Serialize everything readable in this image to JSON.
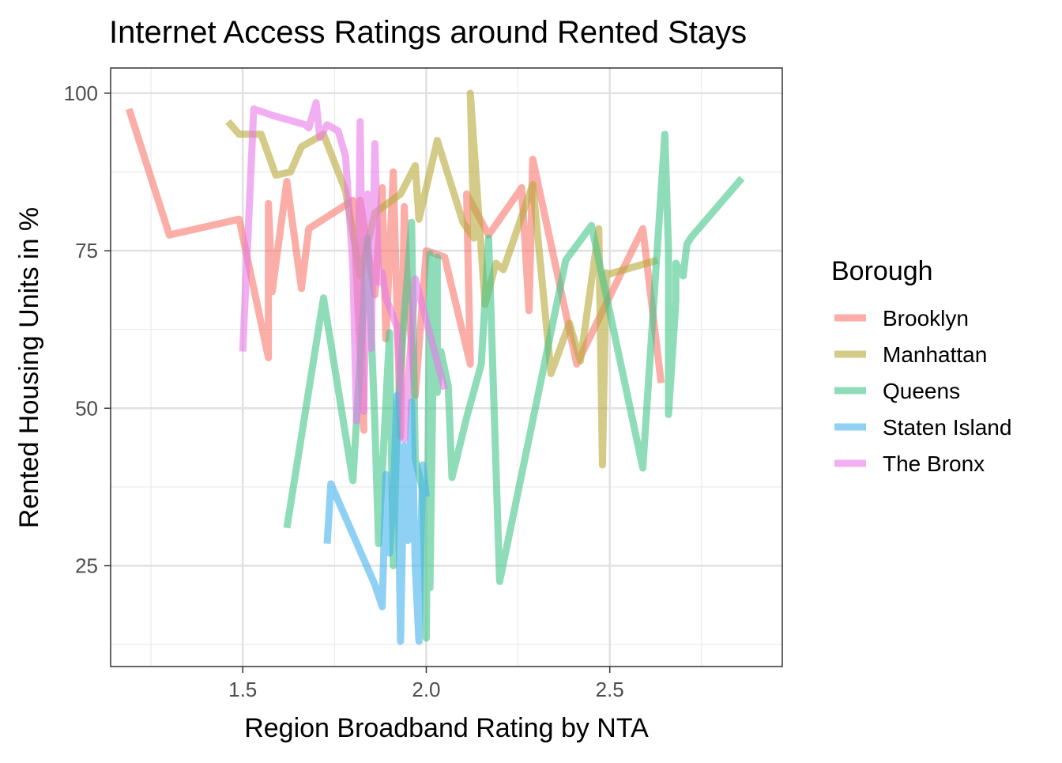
{
  "chart_data": {
    "type": "line",
    "title": "Internet Access Ratings around Rented Stays",
    "xlabel": "Region Broadband Rating by NTA",
    "ylabel": "Rented Housing Units in %",
    "xlim": [
      1.14,
      2.97
    ],
    "ylim": [
      9,
      104
    ],
    "x_ticks": [
      1.5,
      2.0,
      2.5
    ],
    "x_tick_labels": [
      "1.5",
      "2.0",
      "2.5"
    ],
    "x_minor": [
      1.25,
      1.75,
      2.25,
      2.75
    ],
    "y_ticks": [
      25,
      50,
      75,
      100
    ],
    "y_tick_labels": [
      "25",
      "50",
      "75",
      "100"
    ],
    "y_minor": [
      12.5,
      37.5,
      62.5,
      87.5
    ],
    "grid": true,
    "legend": {
      "title": "Borough",
      "position": "right"
    },
    "series": [
      {
        "name": "Brooklyn",
        "color": "#F8766D",
        "x": [
          1.19,
          1.3,
          1.49,
          1.57,
          1.57,
          1.58,
          1.62,
          1.66,
          1.68,
          1.8,
          1.83,
          1.82,
          1.86,
          1.88,
          1.89,
          1.91,
          1.93,
          1.94,
          1.95,
          1.97,
          2.0,
          2.05,
          2.12,
          2.11,
          2.17,
          2.26,
          2.28,
          2.29,
          2.41,
          2.59,
          2.64
        ],
        "y": [
          97.5,
          77.5,
          80,
          58,
          82.5,
          68.5,
          86,
          69,
          78.5,
          83,
          46.5,
          83,
          68,
          85,
          61,
          87.5,
          45.5,
          82,
          68,
          52,
          75,
          74,
          57,
          84,
          77.5,
          85,
          65.5,
          89.5,
          57,
          78.5,
          54
        ]
      },
      {
        "name": "Manhattan",
        "color": "#B7A839",
        "x": [
          1.46,
          1.49,
          1.55,
          1.59,
          1.63,
          1.66,
          1.72,
          1.78,
          1.82,
          1.86,
          1.93,
          1.97,
          1.98,
          2.03,
          2.1,
          2.13,
          2.12,
          2.16,
          2.19,
          2.21,
          2.29,
          2.34,
          2.39,
          2.42,
          2.47,
          2.48,
          2.49,
          2.48,
          2.63
        ],
        "y": [
          95.5,
          93.5,
          93.5,
          87,
          87.5,
          91.5,
          93.5,
          84.5,
          71,
          81,
          84,
          88.5,
          80,
          92.5,
          79.5,
          77,
          100,
          66.5,
          73,
          72,
          85.5,
          55.5,
          63.5,
          57.5,
          78.5,
          41,
          71.5,
          71,
          73.5
        ]
      },
      {
        "name": "Queens",
        "color": "#44C48A",
        "x": [
          1.62,
          1.72,
          1.8,
          1.84,
          1.86,
          1.87,
          1.9,
          1.91,
          1.92,
          1.93,
          1.94,
          1.96,
          1.97,
          1.99,
          2.0,
          2.01,
          2.01,
          2.02,
          2.03,
          2.03,
          2.04,
          2.06,
          2.07,
          2.11,
          2.15,
          2.17,
          2.2,
          2.38,
          2.45,
          2.59,
          2.65,
          2.66,
          2.66,
          2.68,
          2.68,
          2.7,
          2.71,
          2.72,
          2.86
        ],
        "y": [
          31,
          67.5,
          38.5,
          77,
          47.5,
          28.5,
          62,
          25,
          47,
          56.5,
          64.5,
          79.5,
          42,
          37,
          13.5,
          74.5,
          21.5,
          61,
          74,
          52.5,
          59,
          53.5,
          39,
          48.5,
          57,
          77,
          22.5,
          73.5,
          79,
          40.5,
          93.5,
          75,
          49,
          67,
          73,
          71,
          76,
          77,
          86.5
        ]
      },
      {
        "name": "Staten Island",
        "color": "#44B2EE",
        "x": [
          1.73,
          1.74,
          1.86,
          1.88,
          1.89,
          1.9,
          1.91,
          1.92,
          1.93,
          1.94,
          1.95,
          1.96,
          1.97,
          1.98,
          1.99,
          2.0
        ],
        "y": [
          28.5,
          38,
          22,
          18.5,
          39.5,
          27,
          36,
          52,
          13,
          44,
          29,
          51,
          25,
          13,
          41,
          36
        ]
      },
      {
        "name": "The Bronx",
        "color": "#E879EA",
        "x": [
          1.5,
          1.53,
          1.58,
          1.67,
          1.68,
          1.7,
          1.71,
          1.73,
          1.76,
          1.78,
          1.8,
          1.81,
          1.82,
          1.83,
          1.84,
          1.85,
          1.86,
          1.87,
          1.88,
          1.89,
          1.92,
          1.94,
          1.97,
          2.05
        ],
        "y": [
          59,
          97.5,
          96.5,
          95,
          94.5,
          98.5,
          93,
          95,
          94,
          90,
          72.5,
          48,
          95.5,
          49.5,
          84,
          59.5,
          92,
          70,
          71.5,
          67.5,
          63,
          45,
          70.5,
          53
        ]
      }
    ]
  }
}
